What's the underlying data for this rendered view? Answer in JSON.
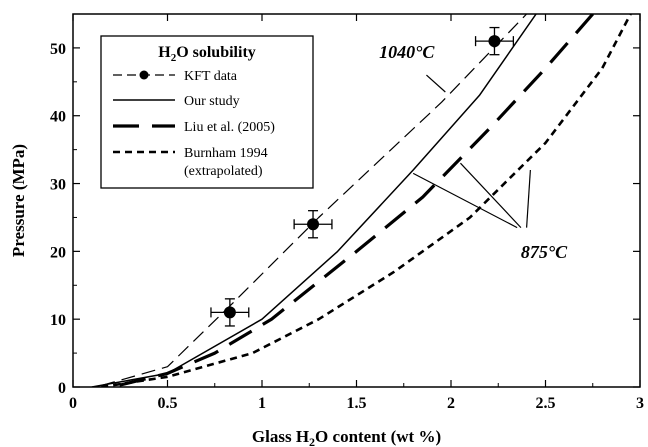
{
  "chart_data": {
    "type": "line",
    "xlabel_parts": [
      "Glass H",
      "2",
      "O content (wt %)"
    ],
    "ylabel": "Pressure (MPa)",
    "xlim": [
      0,
      3
    ],
    "ylim": [
      0,
      55
    ],
    "x_ticks": [
      0,
      0.5,
      1,
      1.5,
      2,
      2.5,
      3
    ],
    "x_tick_labels": [
      "0",
      "0.5",
      "1",
      "1.5",
      "2",
      "2.5",
      "3"
    ],
    "y_ticks": [
      0,
      10,
      20,
      30,
      40,
      50
    ],
    "y_tick_labels": [
      "0",
      "10",
      "20",
      "30",
      "40",
      "50"
    ],
    "legend": {
      "title_parts": [
        "H",
        "2",
        "O solubility"
      ],
      "placement": "top-left",
      "entries": [
        {
          "label": "KFT data",
          "style": "marker-dashed"
        },
        {
          "label": "Our study",
          "style": "solid"
        },
        {
          "label": "Liu et al. (2005)",
          "style": "long-dash"
        },
        {
          "label": "Burnham 1994",
          "label2": "(extrapolated)",
          "style": "short-dash"
        }
      ]
    },
    "series": [
      {
        "key": "kft-1040",
        "style": "thin-dash",
        "points": [
          [
            0.15,
            0.2
          ],
          [
            0.5,
            3
          ],
          [
            0.85,
            12.5
          ],
          [
            1.3,
            25
          ],
          [
            1.95,
            42
          ],
          [
            2.4,
            55
          ]
        ]
      },
      {
        "key": "our-study-875",
        "style": "solid",
        "points": [
          [
            0.1,
            0
          ],
          [
            0.5,
            2
          ],
          [
            1.0,
            10
          ],
          [
            1.4,
            20
          ],
          [
            1.8,
            32
          ],
          [
            2.15,
            43
          ],
          [
            2.45,
            55
          ]
        ]
      },
      {
        "key": "liu-2005",
        "style": "long-dash",
        "points": [
          [
            0.25,
            0.3
          ],
          [
            0.5,
            2
          ],
          [
            0.75,
            5
          ],
          [
            1.05,
            10
          ],
          [
            1.5,
            20
          ],
          [
            1.85,
            28
          ],
          [
            2.2,
            38
          ],
          [
            2.5,
            47
          ],
          [
            2.75,
            55
          ]
        ]
      },
      {
        "key": "burnham-1994",
        "style": "short-dash",
        "points": [
          [
            0.15,
            0
          ],
          [
            0.5,
            1.5
          ],
          [
            0.95,
            5
          ],
          [
            1.3,
            10
          ],
          [
            1.7,
            17
          ],
          [
            2.1,
            25
          ],
          [
            2.5,
            36
          ],
          [
            2.8,
            47
          ],
          [
            2.95,
            55
          ]
        ]
      }
    ],
    "kft_points": [
      {
        "x": 0.83,
        "y": 11,
        "xerr": 0.1,
        "yerr": 2
      },
      {
        "x": 1.27,
        "y": 24,
        "xerr": 0.1,
        "yerr": 2
      },
      {
        "x": 2.23,
        "y": 51,
        "xerr": 0.1,
        "yerr": 2
      }
    ],
    "annotations": [
      {
        "text": "1040°C",
        "anchor": [
          1.62,
          48.5
        ],
        "leader": [
          [
            1.87,
            46
          ],
          [
            1.97,
            43.5
          ]
        ]
      },
      {
        "text": "875°C",
        "anchor": [
          2.37,
          19.0
        ],
        "leaders": [
          [
            [
              2.35,
              23.5
            ],
            [
              1.8,
              31.5
            ]
          ],
          [
            [
              2.37,
              23.5
            ],
            [
              2.05,
              33
            ]
          ],
          [
            [
              2.4,
              23.5
            ],
            [
              2.42,
              32
            ]
          ]
        ]
      }
    ]
  }
}
